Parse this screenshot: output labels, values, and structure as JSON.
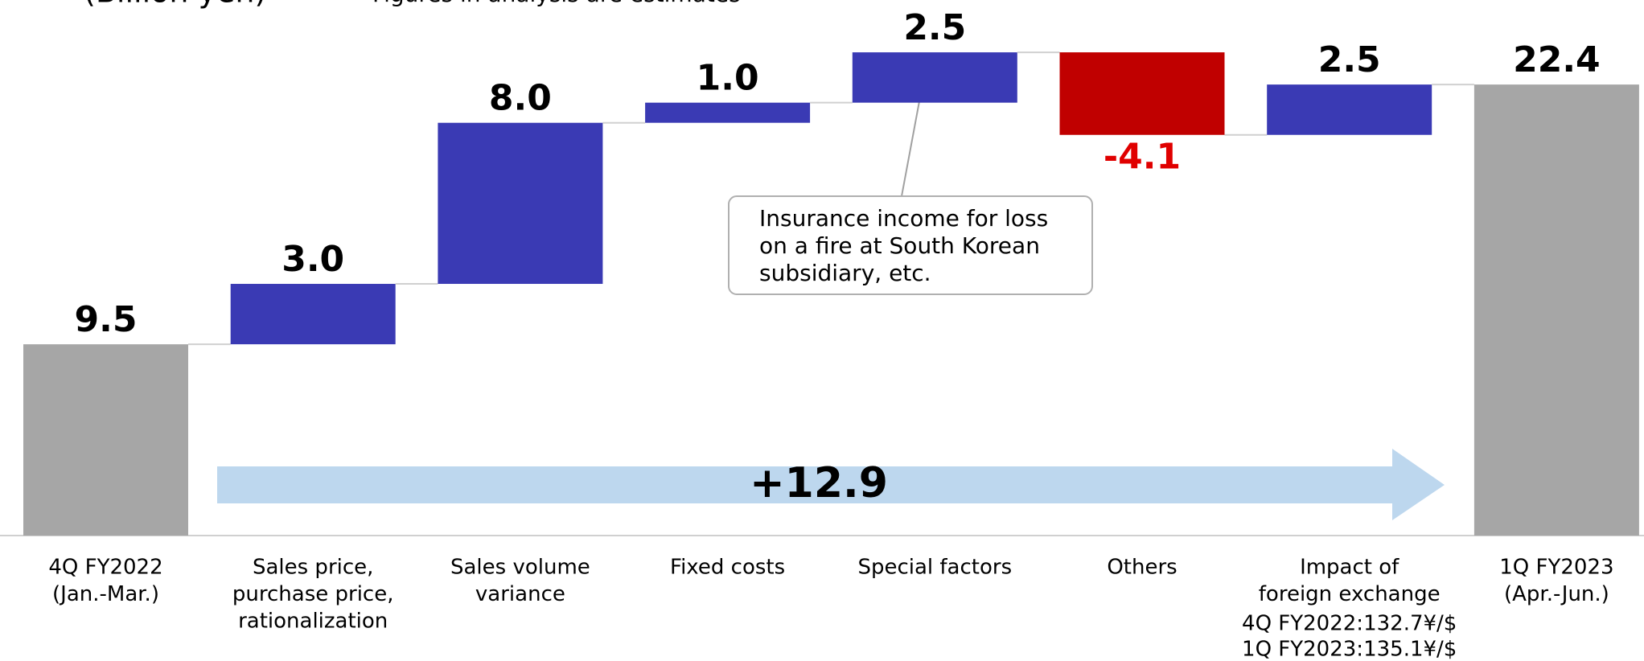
{
  "chart_data": {
    "type": "waterfall",
    "title": "(Billion yen)",
    "subtitle": "Figures in analysis are estimates",
    "categories": [
      [
        "4Q FY2022",
        "(Jan.-Mar.)"
      ],
      [
        "Sales price,",
        "purchase price,",
        "rationalization"
      ],
      [
        "Sales volume",
        "variance"
      ],
      [
        "Fixed costs"
      ],
      [
        "Special factors"
      ],
      [
        "Others"
      ],
      [
        "Impact of",
        "foreign exchange"
      ],
      [
        "1Q FY2023",
        "(Apr.-Jun.)"
      ]
    ],
    "values": [
      9.5,
      3.0,
      8.0,
      1.0,
      2.5,
      -4.1,
      2.5,
      22.4
    ],
    "value_labels": [
      "9.5",
      "3.0",
      "8.0",
      "1.0",
      "2.5",
      "-4.1",
      "2.5",
      "22.4"
    ],
    "colors": [
      "#a6a6a6",
      "#3a3ab4",
      "#3a3ab4",
      "#3a3ab4",
      "#3a3ab4",
      "#c00000",
      "#3a3ab4",
      "#a6a6a6"
    ],
    "ylim": [
      0,
      26
    ],
    "arrow_label": "+12.9",
    "fx_note": [
      "4Q FY2022:132.7¥/$",
      "1Q FY2023:135.1¥/$"
    ],
    "callout": [
      "Insurance income for loss",
      "on  a fire at South Korean",
      "subsidiary, etc."
    ]
  }
}
